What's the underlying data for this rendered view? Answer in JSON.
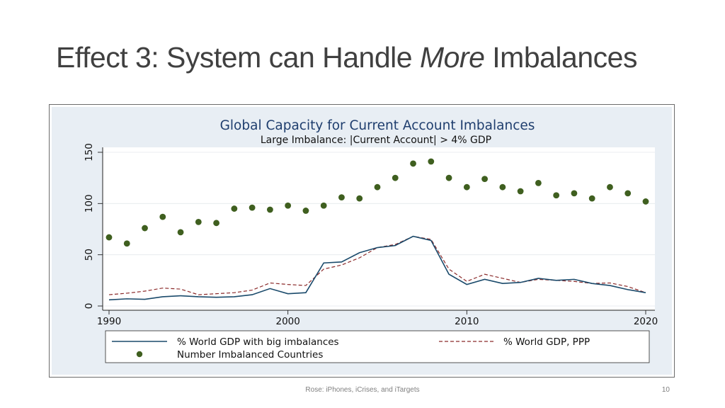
{
  "slide": {
    "title_prefix": "Effect 3: System can Handle ",
    "title_emphasis": "More",
    "title_suffix": " Imbalances",
    "footer": "Rose: iPhones, iCrises, and iTargets",
    "page_number": "10"
  },
  "colors": {
    "panel_bg": "#e8eef4",
    "plot_bg": "#ffffff",
    "series_gdp": "#1a4a6b",
    "series_ppp": "#8b2a2a",
    "series_count": "#3f5f1f",
    "title_color": "#1f3e6e"
  },
  "chart_data": {
    "type": "line",
    "title": "Global Capacity for Current Account Imbalances",
    "subtitle": "Large Imbalance: |Current Account| > 4% GDP",
    "xlim": [
      1990,
      2020
    ],
    "ylim": [
      0,
      150
    ],
    "x_ticks": [
      "1990",
      "2000",
      "2010",
      "2020"
    ],
    "y_ticks": [
      "0",
      "50",
      "100",
      "150"
    ],
    "legend": {
      "position": "bottom",
      "entries": [
        "% World GDP with big imbalances",
        "% World GDP, PPP",
        "Number Imbalanced Countries"
      ]
    },
    "x": [
      1990,
      1991,
      1992,
      1993,
      1994,
      1995,
      1996,
      1997,
      1998,
      1999,
      2000,
      2001,
      2002,
      2003,
      2004,
      2005,
      2006,
      2007,
      2008,
      2009,
      2010,
      2011,
      2012,
      2013,
      2014,
      2015,
      2016,
      2017,
      2018,
      2019,
      2020
    ],
    "series": [
      {
        "name": "% World GDP with big imbalances",
        "style": "solid-line",
        "values": [
          6,
          7,
          6.5,
          9,
          10,
          9,
          8.5,
          9,
          11,
          17,
          12,
          13,
          42,
          43,
          52,
          57,
          59,
          68,
          64,
          31,
          21,
          26,
          22,
          23,
          27,
          25,
          26,
          22,
          20,
          16,
          13
        ]
      },
      {
        "name": "% World GDP, PPP",
        "style": "dashed-line",
        "values": [
          11,
          12.5,
          14.5,
          17.5,
          16.5,
          11,
          12,
          13,
          15.5,
          22.5,
          21,
          20,
          36,
          40,
          47,
          57,
          60,
          68,
          65,
          36,
          24,
          31,
          27,
          23,
          26,
          25,
          24,
          22,
          22.5,
          19,
          13
        ]
      },
      {
        "name": "Number Imbalanced Countries",
        "style": "markers",
        "values": [
          67,
          61,
          76,
          87,
          72,
          82,
          81,
          95,
          96,
          94,
          98,
          93,
          98,
          106,
          105,
          116,
          125,
          139,
          141,
          125,
          116,
          124,
          116,
          112,
          120,
          108,
          110,
          105,
          116,
          110,
          102
        ]
      }
    ]
  }
}
